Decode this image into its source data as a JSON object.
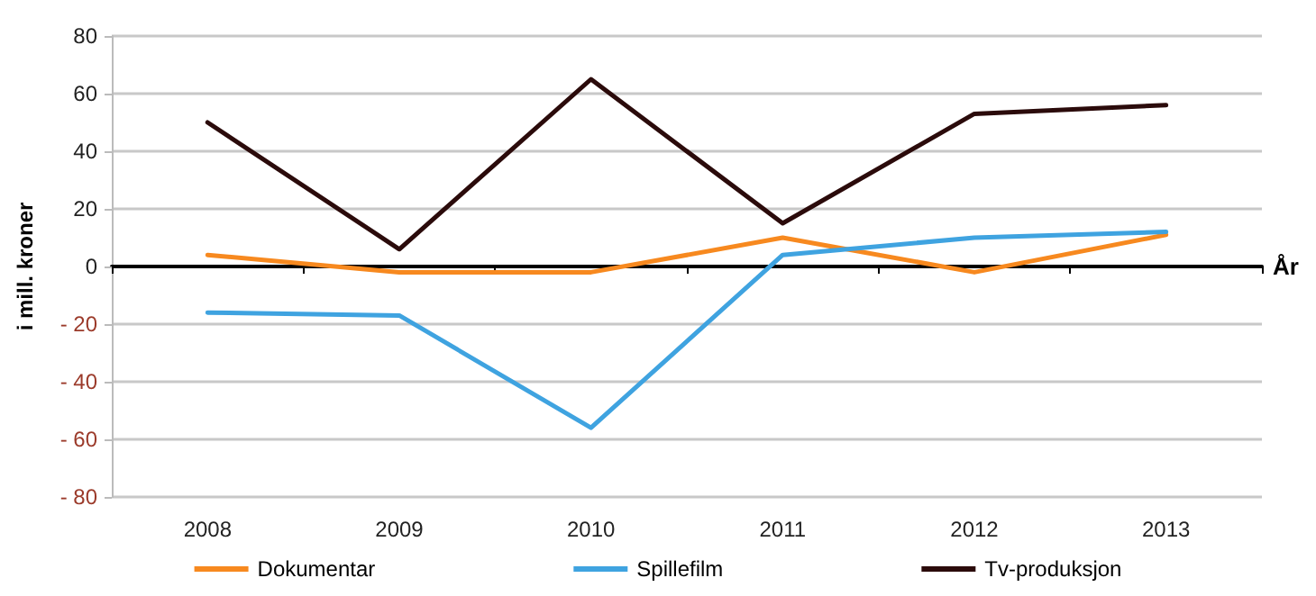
{
  "chart_data": {
    "type": "line",
    "xlabel": "År",
    "ylabel": "i mill. kroner",
    "categories": [
      "2008",
      "2009",
      "2010",
      "2011",
      "2012",
      "2013"
    ],
    "series": [
      {
        "name": "Dokumentar",
        "color": "#f7891f",
        "values": [
          4,
          -2,
          -2,
          10,
          -2,
          11
        ]
      },
      {
        "name": "Spillefilm",
        "color": "#3fa3e0",
        "values": [
          -16,
          -17,
          -56,
          4,
          10,
          12
        ]
      },
      {
        "name": "Tv-produksjon",
        "color": "#2b0b0b",
        "values": [
          50,
          6,
          65,
          15,
          53,
          56
        ]
      }
    ],
    "ylim": [
      -80,
      80
    ],
    "yticks": [
      {
        "value": -80,
        "label": "- 80"
      },
      {
        "value": -60,
        "label": "- 60"
      },
      {
        "value": -40,
        "label": "- 40"
      },
      {
        "value": -20,
        "label": "- 20"
      },
      0,
      20,
      40,
      60,
      80
    ],
    "grid": "y",
    "legend": "bottom",
    "marker": "none",
    "line_style": "solid"
  }
}
